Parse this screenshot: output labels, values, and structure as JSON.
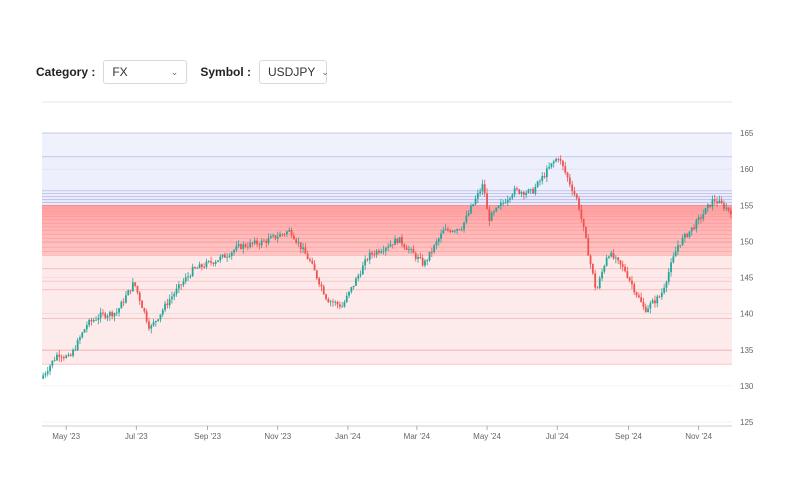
{
  "controls": {
    "category_label": "Category :",
    "category_value": "FX",
    "symbol_label": "Symbol :",
    "symbol_value": "USDJPY"
  },
  "colors": {
    "up": "#26a69a",
    "down": "#ef5350",
    "above_zone": "#e4e6fb",
    "below_zone": "#fde5e5",
    "strong_zone": "#ff6b6b"
  },
  "chart_data": {
    "type": "candlestick",
    "symbol": "USDJPY",
    "y_axis": {
      "min": 125,
      "max": 165,
      "ticks": [
        125,
        130,
        135,
        140,
        145,
        150,
        155,
        160,
        165
      ],
      "position": "right"
    },
    "x_axis": {
      "start": "2023-04-10",
      "end": "2024-11-30",
      "ticks": [
        {
          "date": "2023-05-01",
          "label": "May '23"
        },
        {
          "date": "2023-07-01",
          "label": "Jul '23"
        },
        {
          "date": "2023-09-01",
          "label": "Sep '23"
        },
        {
          "date": "2023-11-01",
          "label": "Nov '23"
        },
        {
          "date": "2024-01-01",
          "label": "Jan '24"
        },
        {
          "date": "2024-03-01",
          "label": "Mar '24"
        },
        {
          "date": "2024-05-01",
          "label": "May '24"
        },
        {
          "date": "2024-07-01",
          "label": "Jul '24"
        },
        {
          "date": "2024-09-01",
          "label": "Sep '24"
        },
        {
          "date": "2024-11-01",
          "label": "Nov '24"
        }
      ]
    },
    "price_path": [
      [
        "2023-04-10",
        131.0
      ],
      [
        "2023-04-25",
        134.5
      ],
      [
        "2023-05-05",
        133.8
      ],
      [
        "2023-05-20",
        138.5
      ],
      [
        "2023-05-31",
        139.7
      ],
      [
        "2023-06-15",
        140.2
      ],
      [
        "2023-06-30",
        144.3
      ],
      [
        "2023-07-14",
        137.9
      ],
      [
        "2023-07-31",
        142.0
      ],
      [
        "2023-08-20",
        146.0
      ],
      [
        "2023-09-15",
        147.8
      ],
      [
        "2023-09-30",
        149.3
      ],
      [
        "2023-10-20",
        149.9
      ],
      [
        "2023-11-13",
        151.5
      ],
      [
        "2023-11-30",
        147.2
      ],
      [
        "2023-12-15",
        142.0
      ],
      [
        "2023-12-28",
        141.0
      ],
      [
        "2024-01-20",
        148.0
      ],
      [
        "2024-02-15",
        150.3
      ],
      [
        "2024-03-08",
        146.8
      ],
      [
        "2024-03-25",
        151.4
      ],
      [
        "2024-04-10",
        152.0
      ],
      [
        "2024-04-29",
        158.0
      ],
      [
        "2024-05-03",
        153.0
      ],
      [
        "2024-05-25",
        157.0
      ],
      [
        "2024-06-10",
        156.8
      ],
      [
        "2024-06-28",
        160.8
      ],
      [
        "2024-07-03",
        161.7
      ],
      [
        "2024-07-20",
        155.5
      ],
      [
        "2024-08-05",
        143.0
      ],
      [
        "2024-08-15",
        148.5
      ],
      [
        "2024-08-30",
        146.0
      ],
      [
        "2024-09-16",
        140.5
      ],
      [
        "2024-09-30",
        142.5
      ],
      [
        "2024-10-15",
        149.5
      ],
      [
        "2024-10-31",
        152.5
      ],
      [
        "2024-11-15",
        155.8
      ],
      [
        "2024-11-30",
        154.2
      ]
    ],
    "zones_above": [
      165.0,
      161.7,
      157.0,
      156.6,
      156.2,
      155.8,
      155.4,
      155.0
    ],
    "zones_strong": [
      155.0,
      154.6,
      154.2,
      153.8,
      153.4,
      153.0,
      152.5,
      152.0,
      151.5,
      151.0,
      150.4,
      149.8,
      149.2,
      148.6,
      148.0
    ],
    "zones_below": [
      146.2,
      144.5,
      143.3,
      139.3,
      134.9,
      133.0
    ]
  }
}
